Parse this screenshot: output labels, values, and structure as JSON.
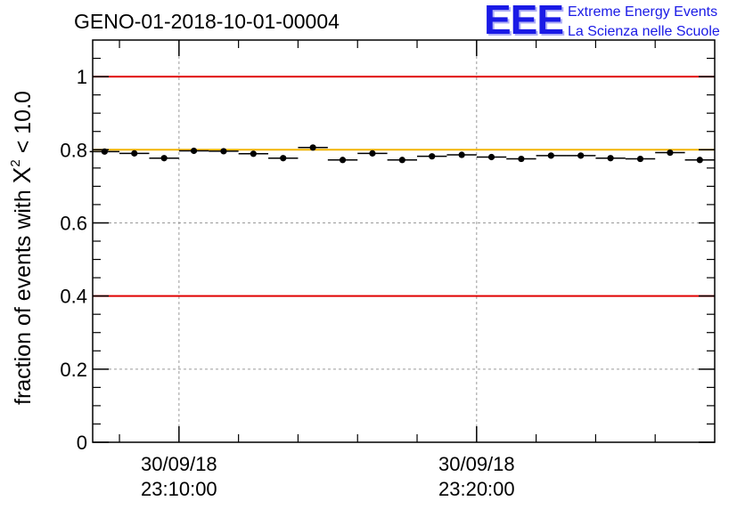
{
  "chart_data": {
    "type": "scatter",
    "title": "GENO-01-2018-10-01-00004",
    "ylabel": {
      "prefix": "fraction of events with ",
      "symbol": "X",
      "superscript": "2",
      "suffix": " < 10.0"
    },
    "xlabel": "",
    "ylim": [
      0,
      1.1
    ],
    "y_ticks": [
      0,
      0.2,
      0.4,
      0.6,
      0.8,
      1
    ],
    "y_tick_labels": [
      "0",
      "0.2",
      "0.4",
      "0.6",
      "0.8",
      "1"
    ],
    "x_range_min": [
      7.1,
      28.0
    ],
    "x_major_ticks_min": [
      10,
      20
    ],
    "x_minor_ticks_min": [
      8,
      12,
      14,
      16,
      18,
      22,
      24,
      26
    ],
    "x_tick_labels": [
      {
        "date": "30/09/18",
        "time": "23:10:00"
      },
      {
        "date": "30/09/18",
        "time": "23:20:00"
      }
    ],
    "grid": true,
    "reference_lines": [
      {
        "y": 1.0,
        "color": "#e00000"
      },
      {
        "y": 0.4,
        "color": "#e00000"
      },
      {
        "y": 0.8,
        "color": "#f2b400"
      }
    ],
    "bin_width_min": 1.0,
    "x": [
      7.5,
      8.5,
      9.5,
      10.5,
      11.5,
      12.5,
      13.5,
      14.5,
      15.5,
      16.5,
      17.5,
      18.5,
      19.5,
      20.5,
      21.5,
      22.5,
      23.5,
      24.5,
      25.5,
      26.5,
      27.5
    ],
    "values": [
      0.795,
      0.79,
      0.777,
      0.797,
      0.796,
      0.789,
      0.777,
      0.806,
      0.772,
      0.79,
      0.772,
      0.782,
      0.786,
      0.78,
      0.775,
      0.784,
      0.784,
      0.777,
      0.775,
      0.792,
      0.772
    ]
  },
  "logo": {
    "letters": "EEE",
    "line1": "Extreme Energy Events",
    "line2": "La Scienza nelle Scuole"
  },
  "colors": {
    "red_line": "#e00000",
    "yellow_line": "#f2b400",
    "logo_blue": "#1a1ae6",
    "grid": "#9a9a9a"
  }
}
